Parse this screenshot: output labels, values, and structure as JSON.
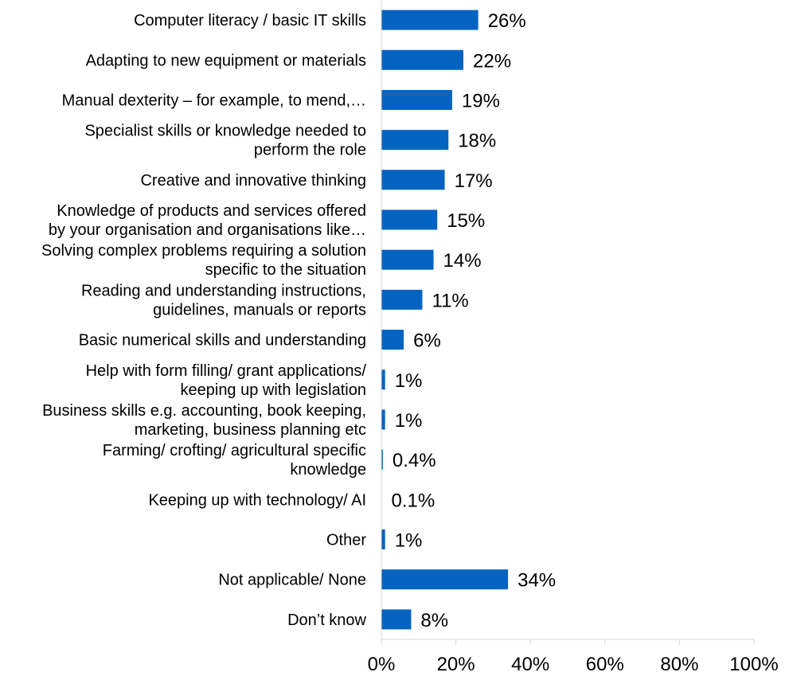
{
  "chart_data": {
    "type": "bar",
    "orientation": "horizontal",
    "title": "",
    "xlabel": "",
    "ylabel": "",
    "xlim": [
      0,
      100
    ],
    "grid": false,
    "legend": "none",
    "bar_color": "#0563C1",
    "categories": [
      [
        "Computer literacy / basic IT skills"
      ],
      [
        "Adapting to new equipment or materials"
      ],
      [
        "Manual dexterity – for example, to mend,…"
      ],
      [
        "Specialist skills or knowledge needed to",
        "perform the role"
      ],
      [
        "Creative and innovative thinking"
      ],
      [
        "Knowledge of products and services offered",
        "by your organisation and organisations like…"
      ],
      [
        "Solving complex problems requiring a solution",
        "specific to the situation"
      ],
      [
        "Reading and understanding instructions,",
        "guidelines, manuals or reports"
      ],
      [
        "Basic numerical skills and understanding"
      ],
      [
        "Help with form filling/ grant applications/",
        "keeping up with legislation"
      ],
      [
        "Business skills e.g. accounting, book keeping,",
        "marketing, business planning etc"
      ],
      [
        "Farming/ crofting/ agricultural specific",
        "knowledge"
      ],
      [
        "Keeping up with technology/ AI"
      ],
      [
        "Other"
      ],
      [
        "Not applicable/ None"
      ],
      [
        "Don’t know"
      ]
    ],
    "values": [
      26,
      22,
      19,
      18,
      17,
      15,
      14,
      11,
      6,
      1,
      1,
      0.4,
      0.1,
      1,
      34,
      8
    ],
    "value_labels": [
      "26%",
      "22%",
      "19%",
      "18%",
      "17%",
      "15%",
      "14%",
      "11%",
      "6%",
      "1%",
      "1%",
      "0.4%",
      "0.1%",
      "1%",
      "34%",
      "8%"
    ],
    "x_ticks": [
      0,
      20,
      40,
      60,
      80,
      100
    ],
    "x_tick_labels": [
      "0%",
      "20%",
      "40%",
      "60%",
      "80%",
      "100%"
    ]
  }
}
